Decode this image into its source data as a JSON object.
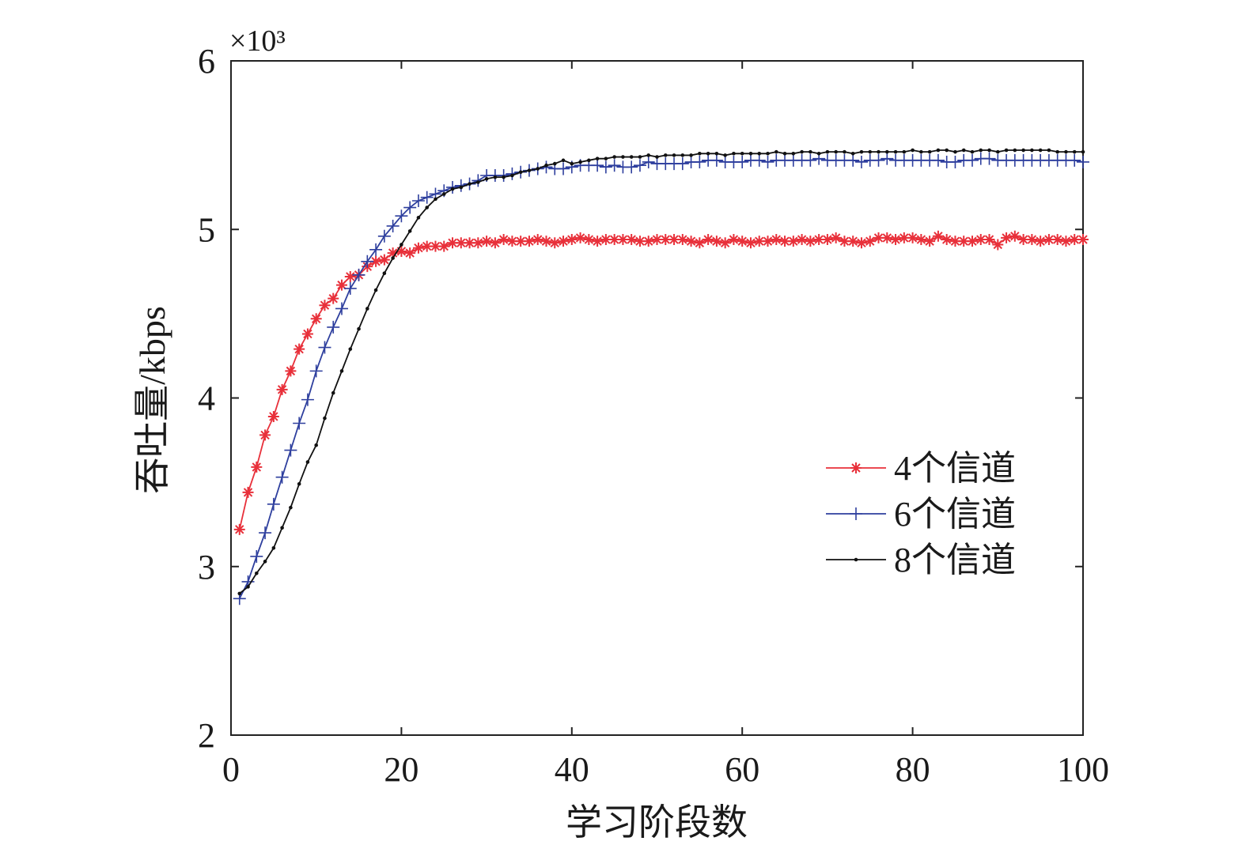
{
  "chart_data": {
    "type": "line",
    "xlabel": "学习阶段数",
    "ylabel": "吞吐量/kbps",
    "y_multiplier": "×10³",
    "xlim": [
      0,
      100
    ],
    "ylim": [
      2,
      6
    ],
    "xticks": [
      0,
      20,
      40,
      60,
      80,
      100
    ],
    "yticks": [
      2,
      3,
      4,
      5,
      6
    ],
    "grid": false,
    "legend_position": "right",
    "x": [
      1,
      2,
      3,
      4,
      5,
      6,
      7,
      8,
      9,
      10,
      11,
      12,
      13,
      14,
      15,
      16,
      17,
      18,
      19,
      20,
      21,
      22,
      23,
      24,
      25,
      26,
      27,
      28,
      29,
      30,
      31,
      32,
      33,
      34,
      35,
      36,
      37,
      38,
      39,
      40,
      41,
      42,
      43,
      44,
      45,
      46,
      47,
      48,
      49,
      50,
      51,
      52,
      53,
      54,
      55,
      56,
      57,
      58,
      59,
      60,
      61,
      62,
      63,
      64,
      65,
      66,
      67,
      68,
      69,
      70,
      71,
      72,
      73,
      74,
      75,
      76,
      77,
      78,
      79,
      80,
      81,
      82,
      83,
      84,
      85,
      86,
      87,
      88,
      89,
      90,
      91,
      92,
      93,
      94,
      95,
      96,
      97,
      98,
      99,
      100
    ],
    "series": [
      {
        "name": "4个信道",
        "color": "#e8303a",
        "marker": "asterisk",
        "values": [
          3.22,
          3.44,
          3.59,
          3.78,
          3.89,
          4.05,
          4.16,
          4.29,
          4.38,
          4.47,
          4.55,
          4.59,
          4.67,
          4.72,
          4.73,
          4.78,
          4.81,
          4.82,
          4.86,
          4.87,
          4.86,
          4.89,
          4.9,
          4.9,
          4.9,
          4.92,
          4.92,
          4.92,
          4.92,
          4.93,
          4.92,
          4.94,
          4.93,
          4.93,
          4.93,
          4.94,
          4.93,
          4.92,
          4.93,
          4.94,
          4.95,
          4.94,
          4.93,
          4.94,
          4.94,
          4.94,
          4.94,
          4.93,
          4.93,
          4.94,
          4.94,
          4.94,
          4.94,
          4.93,
          4.92,
          4.94,
          4.93,
          4.92,
          4.94,
          4.93,
          4.92,
          4.93,
          4.93,
          4.94,
          4.93,
          4.93,
          4.94,
          4.93,
          4.94,
          4.94,
          4.95,
          4.93,
          4.93,
          4.92,
          4.93,
          4.95,
          4.95,
          4.94,
          4.95,
          4.95,
          4.94,
          4.93,
          4.96,
          4.94,
          4.93,
          4.93,
          4.93,
          4.94,
          4.94,
          4.91,
          4.95,
          4.96,
          4.94,
          4.94,
          4.93,
          4.94,
          4.94,
          4.93,
          4.94,
          4.94
        ]
      },
      {
        "name": "6个信道",
        "color": "#2e3f9e",
        "marker": "plus",
        "values": [
          2.81,
          2.91,
          3.06,
          3.2,
          3.37,
          3.53,
          3.69,
          3.85,
          3.99,
          4.16,
          4.3,
          4.42,
          4.53,
          4.65,
          4.73,
          4.81,
          4.88,
          4.96,
          5.02,
          5.08,
          5.13,
          5.17,
          5.19,
          5.21,
          5.23,
          5.25,
          5.26,
          5.27,
          5.29,
          5.32,
          5.32,
          5.32,
          5.33,
          5.34,
          5.35,
          5.36,
          5.37,
          5.36,
          5.36,
          5.37,
          5.38,
          5.38,
          5.38,
          5.37,
          5.38,
          5.37,
          5.37,
          5.38,
          5.4,
          5.39,
          5.39,
          5.39,
          5.39,
          5.4,
          5.4,
          5.41,
          5.41,
          5.4,
          5.4,
          5.4,
          5.41,
          5.41,
          5.4,
          5.41,
          5.41,
          5.41,
          5.41,
          5.41,
          5.42,
          5.41,
          5.41,
          5.41,
          5.41,
          5.4,
          5.41,
          5.41,
          5.42,
          5.41,
          5.41,
          5.41,
          5.41,
          5.41,
          5.41,
          5.4,
          5.4,
          5.41,
          5.41,
          5.42,
          5.42,
          5.41,
          5.41,
          5.41,
          5.41,
          5.41,
          5.41,
          5.41,
          5.41,
          5.41,
          5.41,
          5.4
        ]
      },
      {
        "name": "8个信道",
        "color": "#111111",
        "marker": "dot",
        "values": [
          2.84,
          2.88,
          2.96,
          3.03,
          3.11,
          3.23,
          3.35,
          3.49,
          3.62,
          3.72,
          3.88,
          4.03,
          4.16,
          4.29,
          4.41,
          4.53,
          4.64,
          4.74,
          4.83,
          4.91,
          4.99,
          5.07,
          5.13,
          5.18,
          5.21,
          5.24,
          5.25,
          5.27,
          5.28,
          5.3,
          5.31,
          5.31,
          5.32,
          5.34,
          5.35,
          5.36,
          5.38,
          5.39,
          5.41,
          5.39,
          5.4,
          5.41,
          5.42,
          5.42,
          5.43,
          5.43,
          5.43,
          5.43,
          5.44,
          5.43,
          5.44,
          5.44,
          5.44,
          5.44,
          5.45,
          5.45,
          5.45,
          5.44,
          5.45,
          5.45,
          5.45,
          5.45,
          5.45,
          5.46,
          5.45,
          5.45,
          5.46,
          5.46,
          5.45,
          5.46,
          5.46,
          5.46,
          5.45,
          5.46,
          5.46,
          5.46,
          5.46,
          5.46,
          5.46,
          5.47,
          5.46,
          5.46,
          5.47,
          5.47,
          5.46,
          5.47,
          5.46,
          5.47,
          5.47,
          5.46,
          5.47,
          5.47,
          5.47,
          5.47,
          5.47,
          5.47,
          5.46,
          5.46,
          5.46,
          5.46
        ]
      }
    ]
  }
}
